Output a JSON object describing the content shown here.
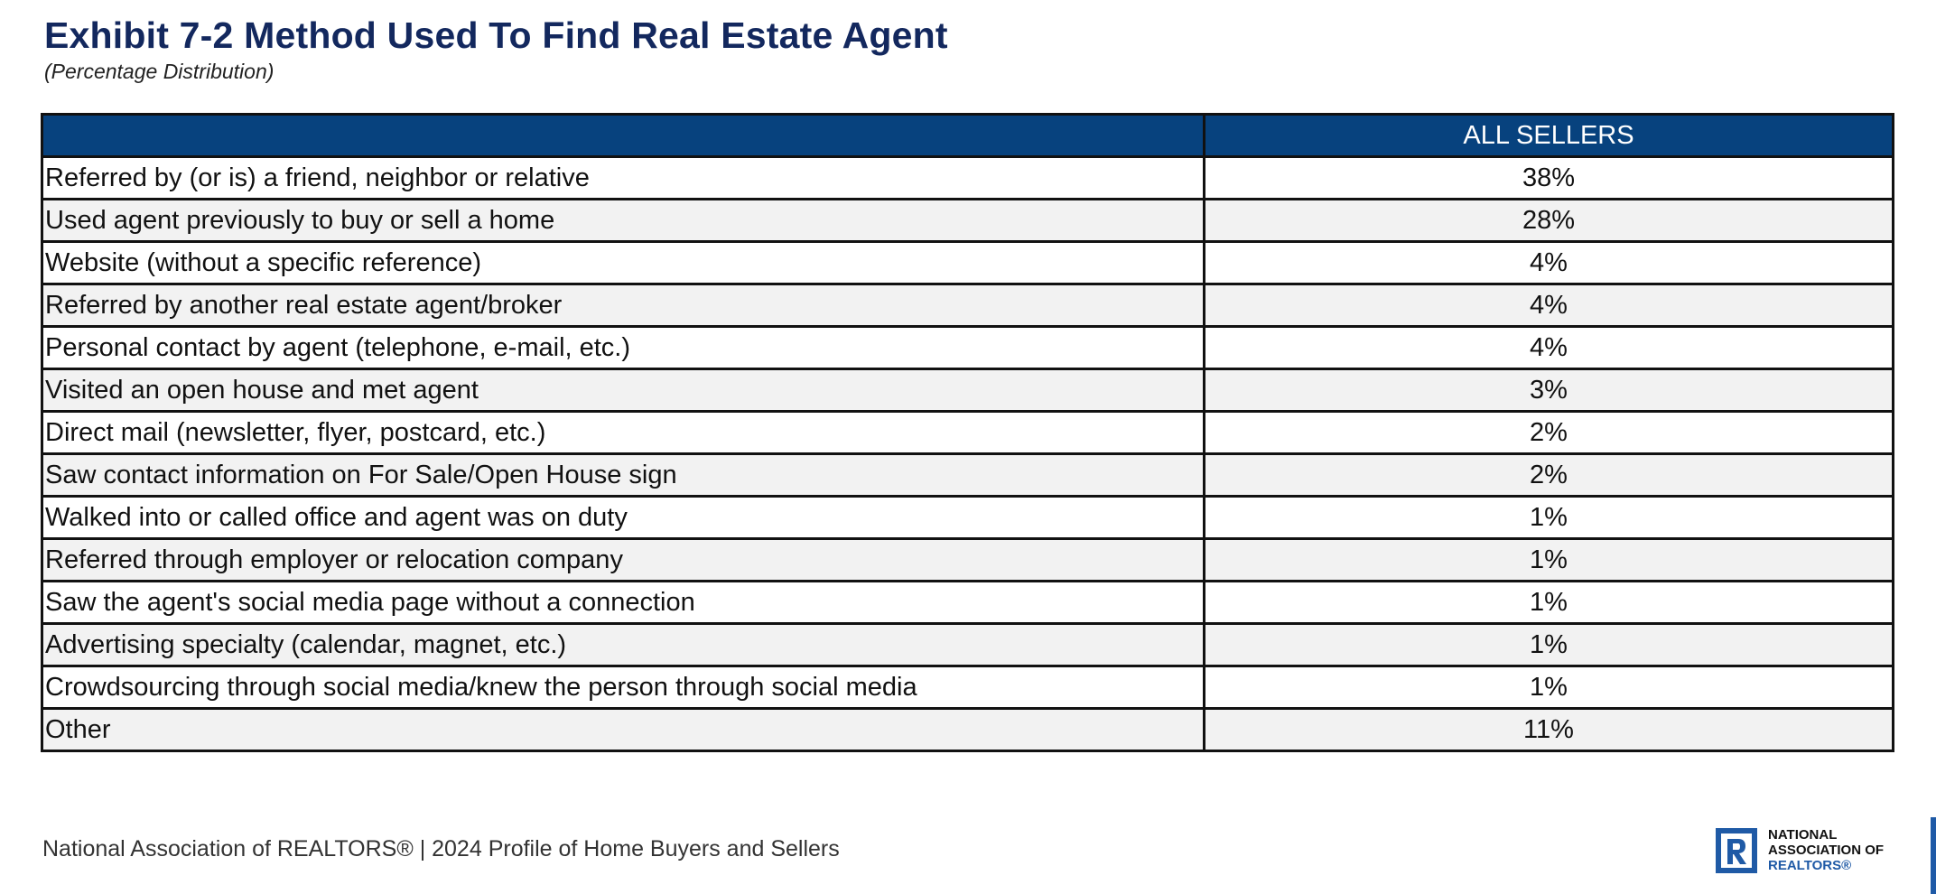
{
  "title": "Exhibit 7-2 Method Used To Find Real Estate Agent",
  "subtitle": "(Percentage Distribution)",
  "table": {
    "headers": [
      "",
      "ALL SELLERS"
    ],
    "rows": [
      {
        "label": "Referred by (or is) a friend, neighbor or relative",
        "value": "38%"
      },
      {
        "label": "Used agent previously to buy or sell a home",
        "value": "28%"
      },
      {
        "label": "Website (without a specific reference)",
        "value": "4%"
      },
      {
        "label": "Referred by another real estate agent/broker",
        "value": "4%"
      },
      {
        "label": "Personal contact by agent (telephone, e-mail, etc.)",
        "value": "4%"
      },
      {
        "label": "Visited an open house and met agent",
        "value": "3%"
      },
      {
        "label": "Direct mail (newsletter, flyer, postcard, etc.)",
        "value": "2%"
      },
      {
        "label": "Saw contact information on For Sale/Open House sign",
        "value": "2%"
      },
      {
        "label": "Walked into or called office and agent was on duty",
        "value": "1%"
      },
      {
        "label": "Referred through employer or relocation company",
        "value": "1%"
      },
      {
        "label": "Saw the agent's social media page without a connection",
        "value": "1%"
      },
      {
        "label": "Advertising specialty (calendar, magnet, etc.)",
        "value": "1%"
      },
      {
        "label": "Crowdsourcing through social media/knew the person through social media",
        "value": "1%"
      },
      {
        "label": "Other",
        "value": "11%"
      }
    ]
  },
  "footer": "National Association of REALTORS® | 2024 Profile of Home Buyers and Sellers",
  "logo": {
    "icon": "realtor-r-logo-icon",
    "line1": "NATIONAL",
    "line2": "ASSOCIATION OF",
    "line3": "REALTORS®"
  },
  "colors": {
    "title": "#13285e",
    "header_bg": "#07427e",
    "header_text": "#ffffff",
    "row_alt_bg": "#f2f2f2",
    "logo_blue": "#1f5aa6"
  }
}
